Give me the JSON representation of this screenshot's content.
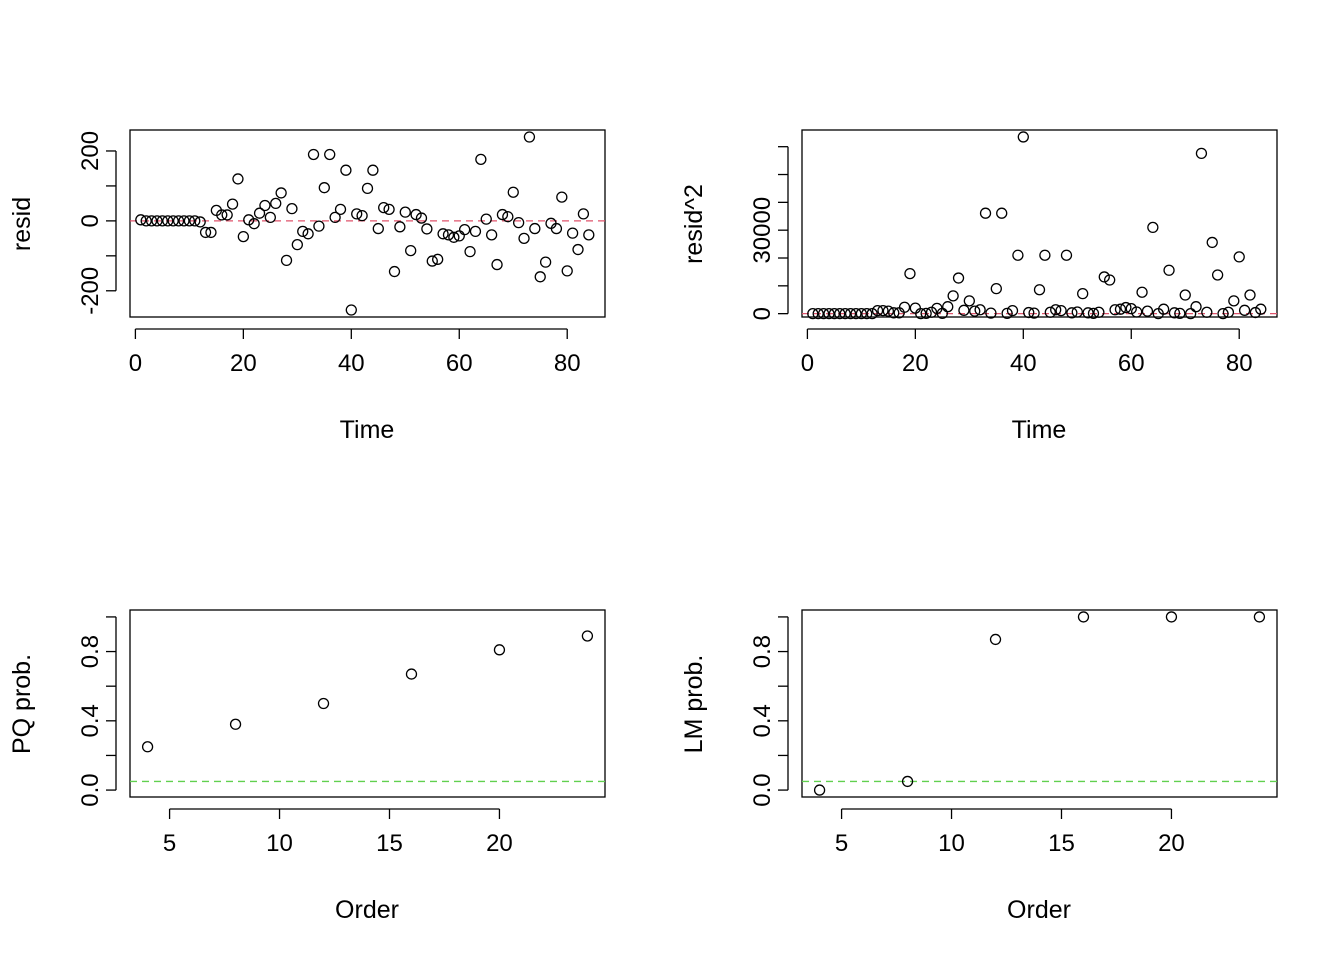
{
  "colors": {
    "points": "#000000",
    "ref_red": "#DF536B",
    "ref_green": "#61D04F"
  },
  "chart_data": [
    {
      "type": "scatter",
      "xlabel": "Time",
      "ylabel": "resid",
      "xlim": [
        -1,
        87
      ],
      "ylim": [
        -275,
        260
      ],
      "xticks": [
        0,
        20,
        40,
        60,
        80
      ],
      "yticks": [
        -200,
        -100,
        0,
        100,
        200
      ],
      "ytick_labels": [
        "-200",
        "",
        "0",
        "",
        "200"
      ],
      "refline": {
        "y": 0,
        "color": "#DF536B",
        "style": "dashed"
      },
      "x": [
        1,
        2,
        3,
        4,
        5,
        6,
        7,
        8,
        9,
        10,
        11,
        12,
        13,
        14,
        15,
        16,
        17,
        18,
        19,
        20,
        21,
        22,
        23,
        24,
        25,
        26,
        27,
        28,
        29,
        30,
        31,
        32,
        33,
        34,
        35,
        36,
        37,
        38,
        39,
        40,
        41,
        42,
        43,
        44,
        45,
        46,
        47,
        48,
        49,
        50,
        51,
        52,
        53,
        54,
        55,
        56,
        57,
        58,
        59,
        60,
        61,
        62,
        63,
        64,
        65,
        66,
        67,
        68,
        69,
        70,
        71,
        72,
        73,
        74,
        75,
        76,
        77,
        78,
        79,
        80,
        81,
        82,
        83,
        84
      ],
      "y": [
        3,
        0,
        0,
        0,
        0,
        0,
        0,
        0,
        0,
        0,
        0,
        -3,
        -33,
        -33,
        30,
        17,
        17,
        48,
        120,
        -45,
        3,
        -8,
        22,
        44,
        10,
        50,
        80,
        -113,
        35,
        -68,
        -30,
        -37,
        190,
        -15,
        95,
        190,
        10,
        33,
        145,
        -255,
        20,
        15,
        93,
        145,
        -22,
        38,
        33,
        -145,
        -17,
        25,
        -85,
        18,
        8,
        -23,
        -115,
        -110,
        -37,
        -40,
        -47,
        -43,
        -25,
        -88,
        -30,
        176,
        5,
        -40,
        -125,
        18,
        12,
        82,
        -5,
        -50,
        240,
        -22,
        -160,
        -118,
        -7,
        -22,
        68,
        -143,
        -35,
        -82,
        20,
        -40
      ]
    },
    {
      "type": "scatter",
      "xlabel": "Time",
      "ylabel": "resid^2",
      "xlim": [
        -1,
        87
      ],
      "ylim": [
        -1200,
        66000
      ],
      "xticks": [
        0,
        20,
        40,
        60,
        80
      ],
      "yticks": [
        0,
        10000,
        20000,
        30000,
        40000,
        50000,
        60000
      ],
      "ytick_labels": [
        "0",
        "",
        "",
        "30000",
        "",
        "",
        ""
      ],
      "refline": {
        "y": 0,
        "color": "#DF536B",
        "style": "dashed"
      },
      "x": [
        1,
        2,
        3,
        4,
        5,
        6,
        7,
        8,
        9,
        10,
        11,
        12,
        13,
        14,
        15,
        16,
        17,
        18,
        19,
        20,
        21,
        22,
        23,
        24,
        25,
        26,
        27,
        28,
        29,
        30,
        31,
        32,
        33,
        34,
        35,
        36,
        37,
        38,
        39,
        40,
        41,
        42,
        43,
        44,
        45,
        46,
        47,
        48,
        49,
        50,
        51,
        52,
        53,
        54,
        55,
        56,
        57,
        58,
        59,
        60,
        61,
        62,
        63,
        64,
        65,
        66,
        67,
        68,
        69,
        70,
        71,
        72,
        73,
        74,
        75,
        76,
        77,
        78,
        79,
        80,
        81,
        82,
        83,
        84
      ],
      "y": [
        0,
        0,
        0,
        0,
        0,
        0,
        0,
        0,
        0,
        0,
        0,
        0,
        1100,
        1100,
        900,
        300,
        300,
        2300,
        14400,
        2000,
        0,
        100,
        500,
        1900,
        100,
        2500,
        6400,
        12800,
        1200,
        4600,
        900,
        1400,
        36100,
        200,
        9000,
        36100,
        100,
        1100,
        21000,
        63500,
        400,
        200,
        8600,
        21000,
        500,
        1400,
        1100,
        21000,
        300,
        600,
        7200,
        300,
        100,
        500,
        13200,
        12100,
        1400,
        1600,
        2200,
        1800,
        600,
        7700,
        900,
        31000,
        0,
        1600,
        15600,
        300,
        100,
        6700,
        0,
        2500,
        57600,
        500,
        25600,
        13900,
        0,
        500,
        4600,
        20400,
        1200,
        6700,
        400,
        1600
      ]
    },
    {
      "type": "scatter",
      "xlabel": "Order",
      "ylabel": "PQ prob.",
      "xlim": [
        3.2,
        24.8
      ],
      "ylim": [
        -0.04,
        1.04
      ],
      "xticks": [
        5,
        10,
        15,
        20
      ],
      "yticks": [
        0,
        0.2,
        0.4,
        0.6,
        0.8,
        1.0
      ],
      "ytick_labels": [
        "0.0",
        "",
        "0.4",
        "",
        "0.8",
        ""
      ],
      "refline": {
        "y": 0.05,
        "color": "#61D04F",
        "style": "dashed"
      },
      "x": [
        4,
        8,
        12,
        16,
        20,
        24
      ],
      "y": [
        0.25,
        0.38,
        0.5,
        0.67,
        0.81,
        0.89
      ]
    },
    {
      "type": "scatter",
      "xlabel": "Order",
      "ylabel": "LM prob.",
      "xlim": [
        3.2,
        24.8
      ],
      "ylim": [
        -0.04,
        1.04
      ],
      "xticks": [
        5,
        10,
        15,
        20
      ],
      "yticks": [
        0,
        0.2,
        0.4,
        0.6,
        0.8,
        1.0
      ],
      "ytick_labels": [
        "0.0",
        "",
        "0.4",
        "",
        "0.8",
        ""
      ],
      "refline": {
        "y": 0.05,
        "color": "#61D04F",
        "style": "dashed"
      },
      "x": [
        4,
        8,
        12,
        16,
        20,
        24
      ],
      "y": [
        0.0,
        0.05,
        0.87,
        1.0,
        1.0,
        1.0
      ]
    }
  ]
}
